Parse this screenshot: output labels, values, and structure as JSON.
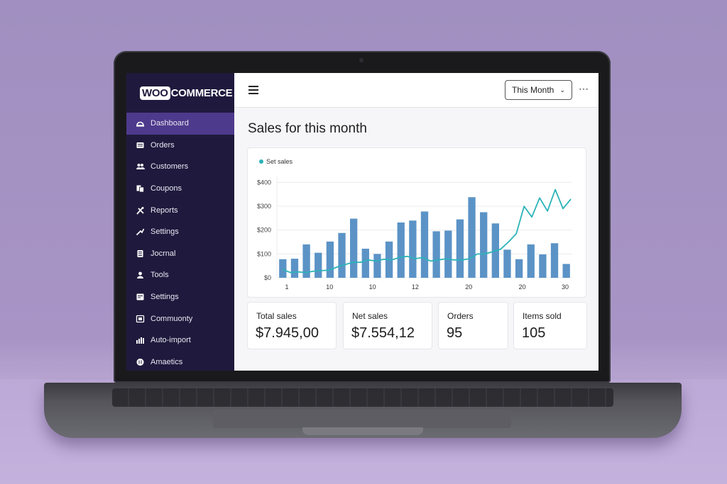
{
  "brand": {
    "woo": "WOO",
    "commerce": "COMMERCE"
  },
  "sidebar": {
    "items": [
      {
        "label": "Dashboard",
        "icon": "dashboard-icon",
        "active": true
      },
      {
        "label": "Orders",
        "icon": "orders-icon"
      },
      {
        "label": "Customers",
        "icon": "customers-icon"
      },
      {
        "label": "Coupons",
        "icon": "coupons-icon"
      },
      {
        "label": "Reports",
        "icon": "reports-icon"
      },
      {
        "label": "Settings",
        "icon": "settings-icon"
      },
      {
        "label": "Jocrnal",
        "icon": "journal-icon"
      },
      {
        "label": "Tools",
        "icon": "tools-icon"
      },
      {
        "label": "Settings",
        "icon": "settings-alt-icon"
      },
      {
        "label": "Commuonty",
        "icon": "community-icon"
      },
      {
        "label": "Auto-import",
        "icon": "auto-import-icon"
      },
      {
        "label": "Amaetics",
        "icon": "analytics-icon"
      }
    ]
  },
  "header": {
    "period": "This Month",
    "period_chevron": "⌄",
    "more": "⋯"
  },
  "main": {
    "title": "Sales for this month"
  },
  "chart_data": {
    "type": "bar",
    "legend": "Set sales",
    "y_tick_labels": [
      "$400",
      "$300",
      "$200",
      "$100",
      "$0"
    ],
    "y_ticks": [
      400,
      300,
      200,
      100,
      0
    ],
    "ylim": [
      0,
      425
    ],
    "x_tick_labels": [
      {
        "label": "1",
        "day": 1
      },
      {
        "label": "10",
        "day": 5
      },
      {
        "label": "10",
        "day": 9
      },
      {
        "label": "12",
        "day": 13
      },
      {
        "label": "20",
        "day": 18
      },
      {
        "label": "20",
        "day": 23
      },
      {
        "label": "30",
        "day": 27
      }
    ],
    "bars": [
      78,
      80,
      140,
      105,
      152,
      188,
      248,
      122,
      100,
      152,
      232,
      240,
      278,
      195,
      198,
      245,
      338,
      275,
      228,
      118,
      78,
      140,
      98,
      145,
      58
    ],
    "line": [
      35,
      22,
      25,
      22,
      28,
      30,
      32,
      45,
      55,
      65,
      65,
      75,
      70,
      78,
      75,
      85,
      90,
      80,
      85,
      70,
      75,
      80,
      75,
      75,
      80,
      100,
      100,
      110,
      120,
      150,
      185,
      300,
      255,
      335,
      280,
      370,
      290,
      330
    ],
    "bar_color": "#5b93c6",
    "line_color": "#2bb3b8",
    "grid": true
  },
  "stats": [
    {
      "label": "Total sales",
      "value": "$7.945,00"
    },
    {
      "label": "Net sales",
      "value": "$7.554,12"
    },
    {
      "label": "Orders",
      "value": "95"
    },
    {
      "label": "Items sold",
      "value": "105"
    }
  ],
  "colors": {
    "sidebar_bg": "#1f1a3d",
    "active_item": "#4e3a8c",
    "accent": "#2bb3b8"
  }
}
